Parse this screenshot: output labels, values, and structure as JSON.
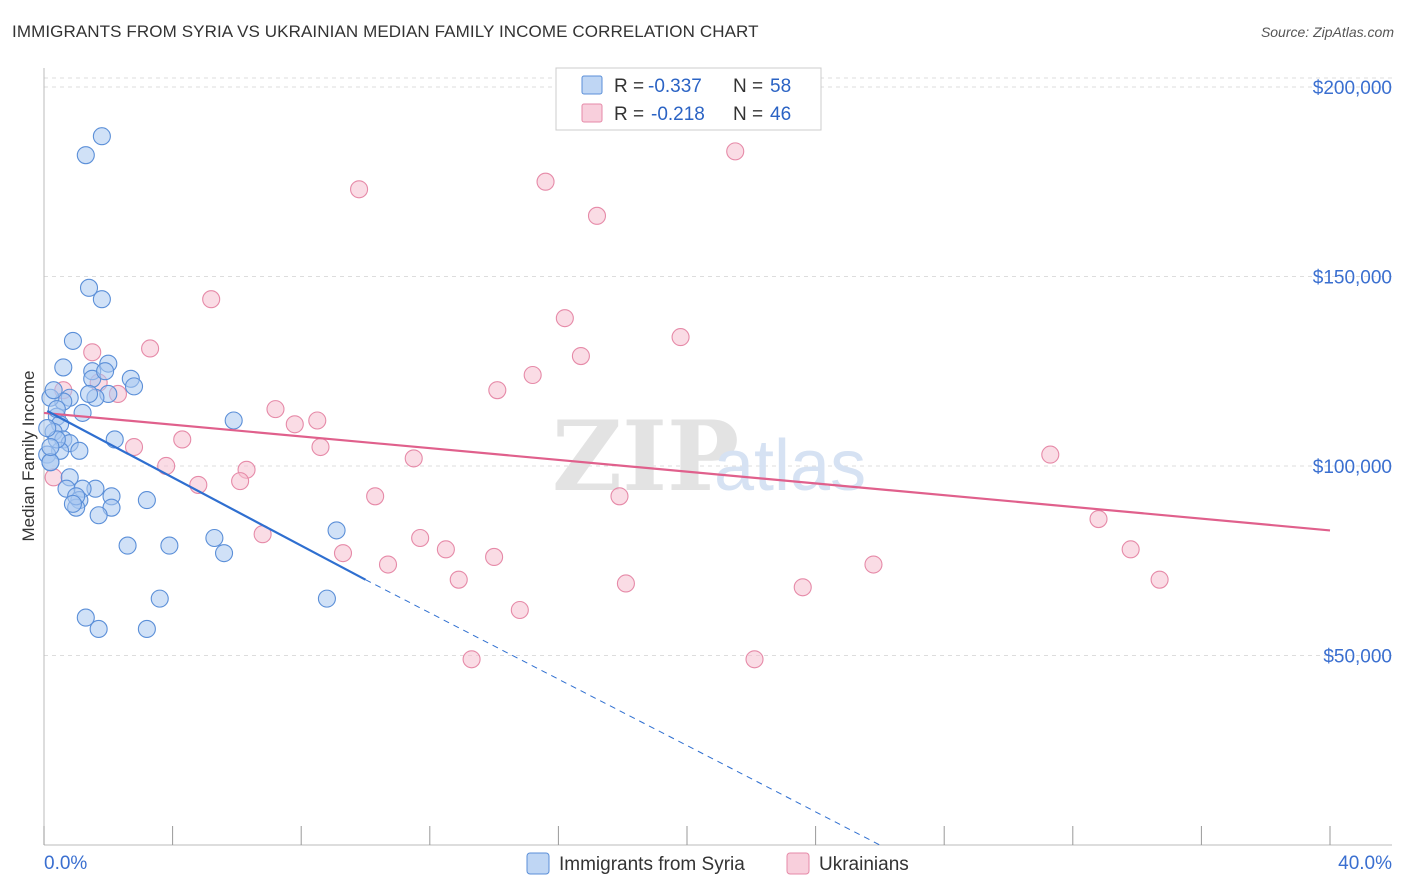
{
  "header": {
    "title": "IMMIGRANTS FROM SYRIA VS UKRAINIAN MEDIAN FAMILY INCOME CORRELATION CHART",
    "source": "Source: ZipAtlas.com"
  },
  "watermark": {
    "zip": "ZIP",
    "atlas": "atlas"
  },
  "colors": {
    "syria_fill": "#a9c8f0",
    "syria_stroke": "#5b8fd8",
    "syria_line": "#2f6fd0",
    "ukr_fill": "#f6bfd0",
    "ukr_stroke": "#e68aa8",
    "ukr_line": "#e0608c",
    "tick_text": "#3a6fd0"
  },
  "legend": {
    "rows": [
      {
        "r_label": "R =",
        "r_value": "-0.337",
        "n_label": "N =",
        "n_value": "58"
      },
      {
        "r_label": "R =",
        "r_value": "-0.218",
        "n_label": "N =",
        "n_value": "46"
      }
    ],
    "bottom": [
      "Immigrants from Syria",
      "Ukrainians"
    ]
  },
  "chart_data": {
    "type": "scatter",
    "title": "IMMIGRANTS FROM SYRIA VS UKRAINIAN MEDIAN FAMILY INCOME CORRELATION CHART",
    "xlabel": "",
    "ylabel": "Median Family Income",
    "xlim": [
      0,
      40
    ],
    "ylim": [
      0,
      205000
    ],
    "x_tick_labels": [
      "0.0%",
      "40.0%"
    ],
    "y_ticks": [
      50000,
      100000,
      150000,
      200000
    ],
    "y_tick_labels": [
      "$50,000",
      "$100,000",
      "$150,000",
      "$200,000"
    ],
    "grid": true,
    "series": [
      {
        "name": "Immigrants from Syria",
        "points": [
          [
            1.8,
            187000
          ],
          [
            1.3,
            182000
          ],
          [
            1.4,
            147000
          ],
          [
            1.8,
            144000
          ],
          [
            0.9,
            133000
          ],
          [
            2.0,
            127000
          ],
          [
            0.6,
            126000
          ],
          [
            1.5,
            125000
          ],
          [
            1.5,
            123000
          ],
          [
            2.7,
            123000
          ],
          [
            2.8,
            121000
          ],
          [
            2.0,
            119000
          ],
          [
            1.6,
            118000
          ],
          [
            0.8,
            118000
          ],
          [
            0.6,
            117000
          ],
          [
            0.2,
            118000
          ],
          [
            1.2,
            114000
          ],
          [
            0.4,
            113000
          ],
          [
            0.5,
            111000
          ],
          [
            5.9,
            112000
          ],
          [
            0.3,
            109000
          ],
          [
            0.6,
            107000
          ],
          [
            0.8,
            106000
          ],
          [
            1.1,
            104000
          ],
          [
            0.5,
            104000
          ],
          [
            2.2,
            107000
          ],
          [
            0.1,
            103000
          ],
          [
            0.2,
            101000
          ],
          [
            0.8,
            97000
          ],
          [
            1.6,
            94000
          ],
          [
            0.7,
            94000
          ],
          [
            1.2,
            94000
          ],
          [
            2.1,
            92000
          ],
          [
            1.1,
            91000
          ],
          [
            3.2,
            91000
          ],
          [
            1.0,
            89000
          ],
          [
            2.1,
            89000
          ],
          [
            1.7,
            87000
          ],
          [
            5.3,
            81000
          ],
          [
            9.1,
            83000
          ],
          [
            2.6,
            79000
          ],
          [
            3.9,
            79000
          ],
          [
            5.6,
            77000
          ],
          [
            3.6,
            65000
          ],
          [
            8.8,
            65000
          ],
          [
            1.3,
            60000
          ],
          [
            1.7,
            57000
          ],
          [
            3.2,
            57000
          ],
          [
            0.3,
            120000
          ],
          [
            1.9,
            125000
          ],
          [
            0.4,
            107000
          ],
          [
            0.1,
            110000
          ],
          [
            1.0,
            92000
          ],
          [
            0.4,
            115000
          ],
          [
            0.2,
            101000
          ],
          [
            1.4,
            119000
          ],
          [
            0.9,
            90000
          ],
          [
            0.2,
            105000
          ]
        ]
      },
      {
        "name": "Ukrainians",
        "points": [
          [
            21.5,
            183000
          ],
          [
            9.8,
            173000
          ],
          [
            15.6,
            175000
          ],
          [
            17.2,
            166000
          ],
          [
            5.2,
            144000
          ],
          [
            16.2,
            139000
          ],
          [
            19.8,
            134000
          ],
          [
            3.3,
            131000
          ],
          [
            16.7,
            129000
          ],
          [
            1.5,
            130000
          ],
          [
            15.2,
            124000
          ],
          [
            14.1,
            120000
          ],
          [
            1.7,
            122000
          ],
          [
            2.3,
            119000
          ],
          [
            7.2,
            115000
          ],
          [
            7.8,
            111000
          ],
          [
            8.5,
            112000
          ],
          [
            4.3,
            107000
          ],
          [
            8.6,
            105000
          ],
          [
            2.8,
            105000
          ],
          [
            11.5,
            102000
          ],
          [
            31.3,
            103000
          ],
          [
            3.8,
            100000
          ],
          [
            6.3,
            99000
          ],
          [
            6.1,
            96000
          ],
          [
            4.8,
            95000
          ],
          [
            10.3,
            92000
          ],
          [
            17.9,
            92000
          ],
          [
            32.8,
            86000
          ],
          [
            6.8,
            82000
          ],
          [
            11.7,
            81000
          ],
          [
            12.5,
            78000
          ],
          [
            9.3,
            77000
          ],
          [
            14.0,
            76000
          ],
          [
            10.7,
            74000
          ],
          [
            33.8,
            78000
          ],
          [
            25.8,
            74000
          ],
          [
            34.7,
            70000
          ],
          [
            12.9,
            70000
          ],
          [
            18.1,
            69000
          ],
          [
            23.6,
            68000
          ],
          [
            14.8,
            62000
          ],
          [
            13.3,
            49000
          ],
          [
            22.1,
            49000
          ],
          [
            0.3,
            97000
          ],
          [
            0.6,
            120000
          ]
        ]
      }
    ],
    "trend_lines": [
      {
        "name": "Immigrants from Syria",
        "solid": [
          [
            0.1,
            114500
          ],
          [
            10.0,
            70000
          ]
        ],
        "dashed": [
          [
            10.0,
            70000
          ],
          [
            26.0,
            0
          ]
        ]
      },
      {
        "name": "Ukrainians",
        "solid": [
          [
            0.0,
            114000
          ],
          [
            40.0,
            83000
          ]
        ]
      }
    ]
  }
}
